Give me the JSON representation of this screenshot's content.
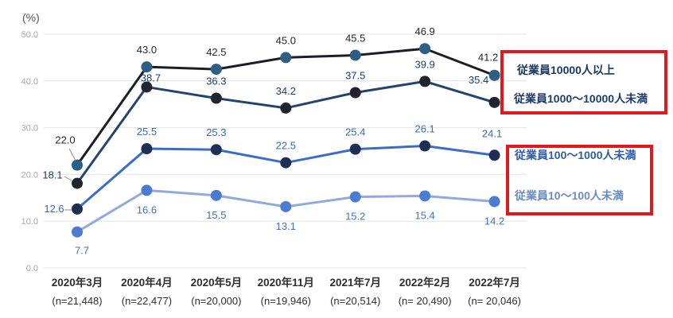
{
  "chart_data": {
    "type": "line",
    "title": "",
    "unit_label": "(%)",
    "x_categories": [
      "2020年3月",
      "2020年4月",
      "2020年5月",
      "2020年11月",
      "2021年7月",
      "2022年2月",
      "2022年7月"
    ],
    "x_sublabels": [
      "(n=21,448)",
      "(n=22,477)",
      "(n=20,000)",
      "(n=19,946)",
      "(n=20,514)",
      "(n= 20,490)",
      "(n= 20,046)"
    ],
    "y_ticks": [
      "0.0",
      "10.0",
      "20.0",
      "30.0",
      "40.0",
      "50.0"
    ],
    "ylim": [
      0,
      50
    ],
    "grid": true,
    "legend_position": "right",
    "series": [
      {
        "name": "従業員10000人以上",
        "values": [
          22.0,
          43.0,
          42.5,
          45.0,
          45.5,
          46.9,
          41.2
        ],
        "line_color": "#1b1e26",
        "dot_color": "#2d5f86",
        "label_color": "#262626",
        "label_side": "above"
      },
      {
        "name": "従業員1000～10000人未満",
        "values": [
          18.1,
          38.7,
          36.3,
          34.2,
          37.5,
          39.9,
          35.4
        ],
        "line_color": "#25436f",
        "dot_color": "#20242f",
        "label_color": "#1e3e6f",
        "label_side": "above"
      },
      {
        "name": "従業員100～1000人未満",
        "values": [
          12.6,
          25.5,
          25.3,
          22.5,
          25.4,
          26.1,
          24.1
        ],
        "line_color": "#3c6dc5",
        "dot_color": "#1d3054",
        "label_color": "#3a68b2",
        "label_side": "above"
      },
      {
        "name": "従業員10～100人未満",
        "values": [
          7.7,
          16.6,
          15.5,
          13.1,
          15.2,
          15.4,
          14.2
        ],
        "line_color": "#92a9de",
        "dot_color": "#4b7cd2",
        "label_color": "#4470b8",
        "label_side": "below"
      }
    ]
  },
  "legend": {
    "highlight_color": "#e3181d",
    "boxes": [
      {
        "items": [
          {
            "label": "従業員10000人以上",
            "color": "#17375e"
          },
          {
            "label": "従業員1000～10000人未満",
            "color": "#1f3d6b"
          }
        ]
      },
      {
        "items": [
          {
            "label": "従業員100～1000人未満",
            "color": "#2f5da8"
          },
          {
            "label": "従業員10～100人未満",
            "color": "#6c8bbf"
          }
        ]
      }
    ]
  },
  "axes": {
    "grid_color": "#e3e3e3",
    "tick_label_color": "#a6a6a6",
    "x_label_color": "#2f2f2f",
    "unit_label_color": "#555555",
    "leader_color": "#8c8c8c"
  }
}
